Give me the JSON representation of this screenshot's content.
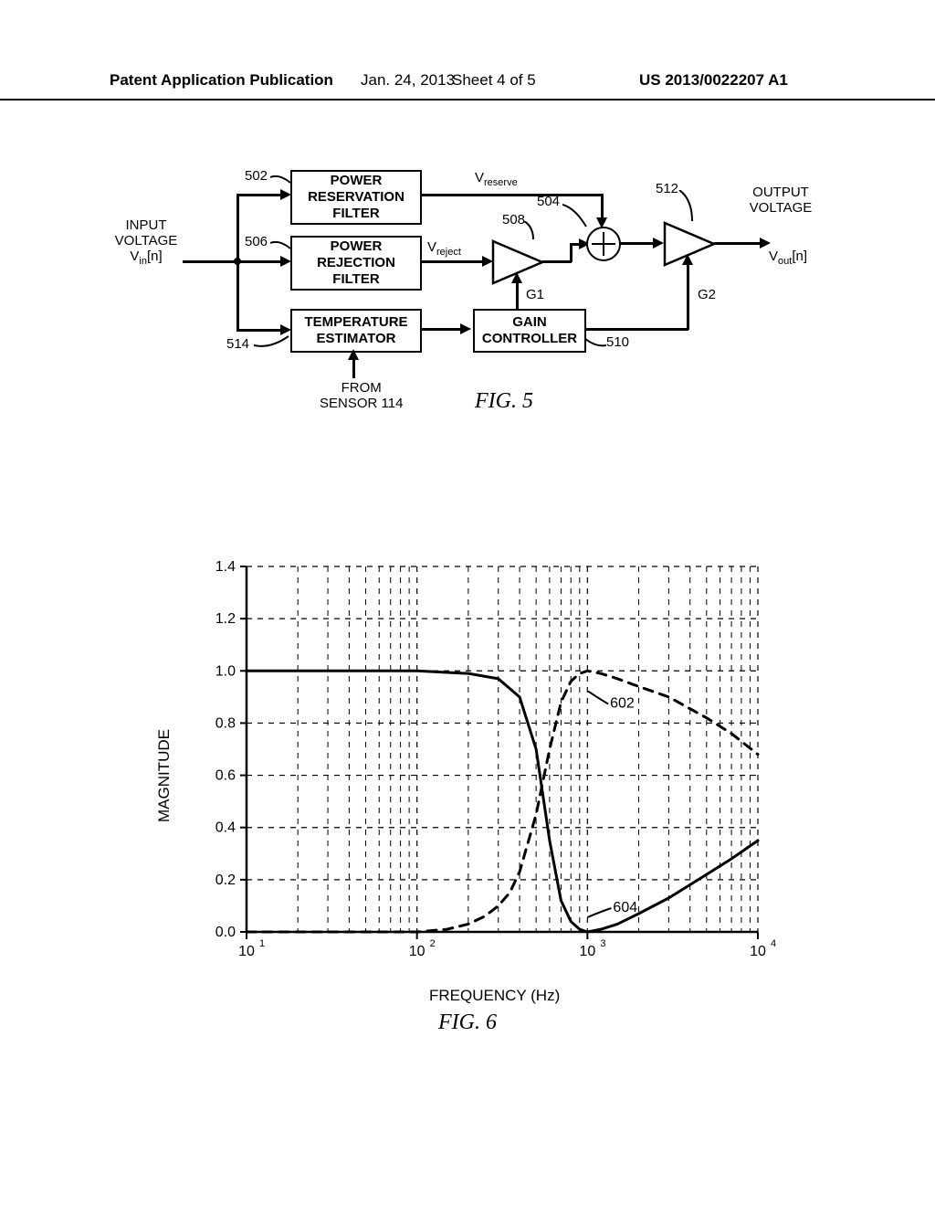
{
  "header": {
    "left": "Patent Application Publication",
    "date": "Jan. 24, 2013",
    "sheet": "Sheet 4 of 5",
    "docno": "US 2013/0022207 A1"
  },
  "fig5": {
    "inputLabel1": "INPUT",
    "inputLabel2": "VOLTAGE",
    "vin": "V",
    "vin_sub": "in",
    "vin_suffix": "[n]",
    "outputLabel1": "OUTPUT",
    "outputLabel2": "VOLTAGE",
    "vout": "V",
    "vout_sub": "out",
    "vout_suffix": "[n]",
    "vreserve": "V",
    "vreserve_sub": "reserve",
    "vreject": "V",
    "vreject_sub": "reject",
    "box_reservation": "POWER\nRESERVATION\nFILTER",
    "box_rejection": "POWER\nREJECTION\nFILTER",
    "box_temp": "TEMPERATURE\nESTIMATOR",
    "box_gain": "GAIN\nCONTROLLER",
    "ref_502": "502",
    "ref_504": "504",
    "ref_506": "506",
    "ref_508": "508",
    "ref_510": "510",
    "ref_512": "512",
    "ref_514": "514",
    "g1": "G1",
    "g2": "G2",
    "from_sensor": "FROM\nSENSOR 114",
    "caption": "FIG. 5"
  },
  "fig6": {
    "ylabel": "MAGNITUDE",
    "xlabel": "FREQUENCY (Hz)",
    "caption": "FIG. 6",
    "yticks": [
      "0.0",
      "0.2",
      "0.4",
      "0.6",
      "0.8",
      "1.0",
      "1.2",
      "1.4"
    ],
    "xticks": [
      "10",
      "10",
      "10",
      "10"
    ],
    "xtick_exp": [
      "1",
      "2",
      "3",
      "4"
    ],
    "ref_602": "602",
    "ref_604": "604",
    "colors": {
      "axis": "#000000",
      "grid": "#000000",
      "series_solid": "#000000",
      "series_dash": "#000000",
      "background": "#ffffff"
    },
    "ylim": [
      0.0,
      1.4
    ],
    "ytick_step": 0.2,
    "xlim_log": [
      1,
      4
    ],
    "series_solid": {
      "style": "solid",
      "width": 3,
      "points": [
        [
          10,
          1.0
        ],
        [
          50,
          1.0
        ],
        [
          100,
          1.0
        ],
        [
          200,
          0.99
        ],
        [
          300,
          0.97
        ],
        [
          400,
          0.9
        ],
        [
          500,
          0.7
        ],
        [
          600,
          0.35
        ],
        [
          700,
          0.12
        ],
        [
          800,
          0.04
        ],
        [
          900,
          0.01
        ],
        [
          1000,
          0.0
        ],
        [
          1200,
          0.01
        ],
        [
          1500,
          0.03
        ],
        [
          2000,
          0.07
        ],
        [
          3000,
          0.13
        ],
        [
          5000,
          0.22
        ],
        [
          7000,
          0.28
        ],
        [
          10000,
          0.35
        ]
      ]
    },
    "series_dash": {
      "style": "dashed",
      "width": 3,
      "dash": "10,8",
      "points": [
        [
          10,
          0.0
        ],
        [
          100,
          0.0
        ],
        [
          150,
          0.01
        ],
        [
          200,
          0.03
        ],
        [
          250,
          0.06
        ],
        [
          300,
          0.1
        ],
        [
          350,
          0.15
        ],
        [
          400,
          0.23
        ],
        [
          500,
          0.45
        ],
        [
          600,
          0.7
        ],
        [
          700,
          0.88
        ],
        [
          800,
          0.96
        ],
        [
          900,
          0.99
        ],
        [
          1000,
          1.0
        ],
        [
          1200,
          0.99
        ],
        [
          1500,
          0.97
        ],
        [
          2000,
          0.94
        ],
        [
          3000,
          0.9
        ],
        [
          5000,
          0.82
        ],
        [
          7000,
          0.76
        ],
        [
          10000,
          0.68
        ]
      ]
    }
  }
}
